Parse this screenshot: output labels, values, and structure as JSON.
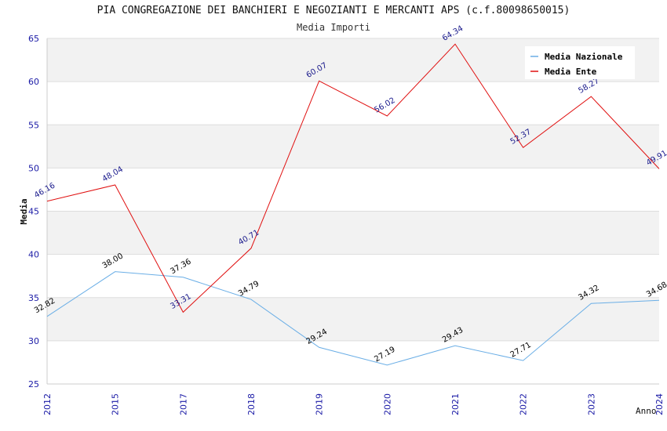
{
  "chart_data": {
    "type": "line",
    "title": "PIA CONGREGAZIONE DEI BANCHIERI E NEGOZIANTI E MERCANTI APS (c.f.80098650015)",
    "subtitle": "Media Importi",
    "xlabel": "Anno",
    "ylabel": "Media",
    "categories": [
      "2012",
      "2015",
      "2017",
      "2018",
      "2019",
      "2020",
      "2021",
      "2022",
      "2023",
      "2024"
    ],
    "ylim": [
      25,
      65
    ],
    "yticks": [
      25,
      30,
      35,
      40,
      45,
      50,
      55,
      60,
      65
    ],
    "grid": true,
    "legend_position": "top-right",
    "series": [
      {
        "name": "Media Nazionale",
        "color": "#6aaee6",
        "label_color": "#000000",
        "values": [
          32.82,
          38.0,
          37.36,
          34.79,
          29.24,
          27.19,
          29.43,
          27.71,
          34.32,
          34.68
        ],
        "labels": [
          "32.82",
          "38.00",
          "37.36",
          "34.79",
          "29.24",
          "27.19",
          "29.43",
          "27.71",
          "34.32",
          "34.68"
        ]
      },
      {
        "name": "Media Ente",
        "color": "#e01010",
        "label_color": "#1a1a8c",
        "values": [
          46.16,
          48.04,
          33.31,
          40.71,
          60.07,
          56.02,
          64.34,
          52.37,
          58.27,
          49.91
        ],
        "labels": [
          "46.16",
          "48.04",
          "33.31",
          "40.71",
          "60.07",
          "56.02",
          "64.34",
          "52.37",
          "58.27",
          "49.91"
        ]
      }
    ]
  }
}
